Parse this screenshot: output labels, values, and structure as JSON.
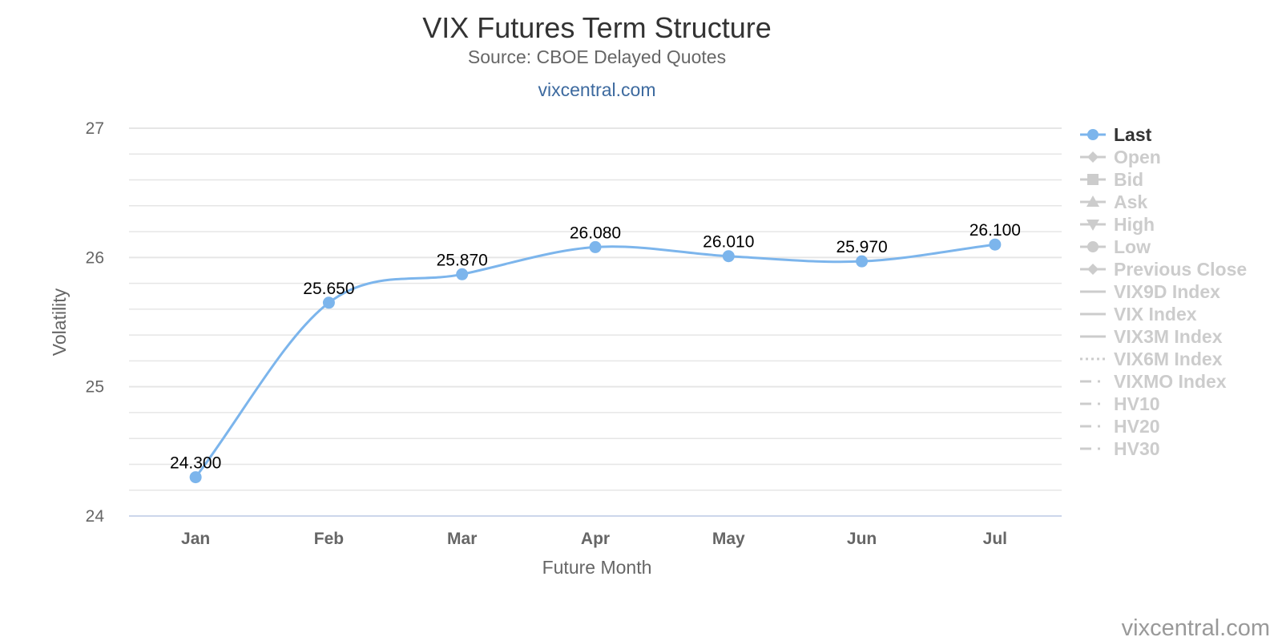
{
  "chart_data": {
    "type": "line",
    "title": "VIX Futures Term Structure",
    "subtitle": "Source: CBOE Delayed Quotes",
    "link_text": "vixcentral.com",
    "xlabel": "Future Month",
    "ylabel": "Volatility",
    "ylim": [
      24,
      27
    ],
    "y_ticks": [
      "24",
      "25",
      "26",
      "27"
    ],
    "categories": [
      "Jan",
      "Feb",
      "Mar",
      "Apr",
      "May",
      "Jun",
      "Jul"
    ],
    "series": [
      {
        "name": "Last",
        "values": [
          24.3,
          25.65,
          25.87,
          26.08,
          26.01,
          25.97,
          26.1
        ],
        "labels": [
          "24.300",
          "25.650",
          "25.870",
          "26.080",
          "26.010",
          "25.970",
          "26.100"
        ],
        "color": "#7cb5ec"
      }
    ],
    "grid": true,
    "legend_placement": "right",
    "legend": [
      {
        "name": "Last",
        "symbol": "circle",
        "line": "solid",
        "active": true
      },
      {
        "name": "Open",
        "symbol": "diamond",
        "line": "solid",
        "active": false
      },
      {
        "name": "Bid",
        "symbol": "square",
        "line": "solid",
        "active": false
      },
      {
        "name": "Ask",
        "symbol": "triangle",
        "line": "solid",
        "active": false
      },
      {
        "name": "High",
        "symbol": "triangle-down",
        "line": "solid",
        "active": false
      },
      {
        "name": "Low",
        "symbol": "circle",
        "line": "solid",
        "active": false
      },
      {
        "name": "Previous Close",
        "symbol": "diamond",
        "line": "solid",
        "active": false
      },
      {
        "name": "VIX9D Index",
        "symbol": "none",
        "line": "solid",
        "active": false
      },
      {
        "name": "VIX Index",
        "symbol": "none",
        "line": "solid",
        "active": false
      },
      {
        "name": "VIX3M Index",
        "symbol": "none",
        "line": "solid",
        "active": false
      },
      {
        "name": "VIX6M Index",
        "symbol": "none",
        "line": "dotted",
        "active": false
      },
      {
        "name": "VIXMO Index",
        "symbol": "none",
        "line": "dashdot",
        "active": false
      },
      {
        "name": "HV10",
        "symbol": "none",
        "line": "dashdot",
        "active": false
      },
      {
        "name": "HV20",
        "symbol": "none",
        "line": "dashdot",
        "active": false
      },
      {
        "name": "HV30",
        "symbol": "none",
        "line": "dashdot",
        "active": false
      }
    ],
    "colors": {
      "active_text": "#333333",
      "inactive": "#cccccc",
      "grid": "#e6e6e6",
      "axis_line": "#ccd6eb"
    },
    "credit": "vixcentral.com"
  }
}
